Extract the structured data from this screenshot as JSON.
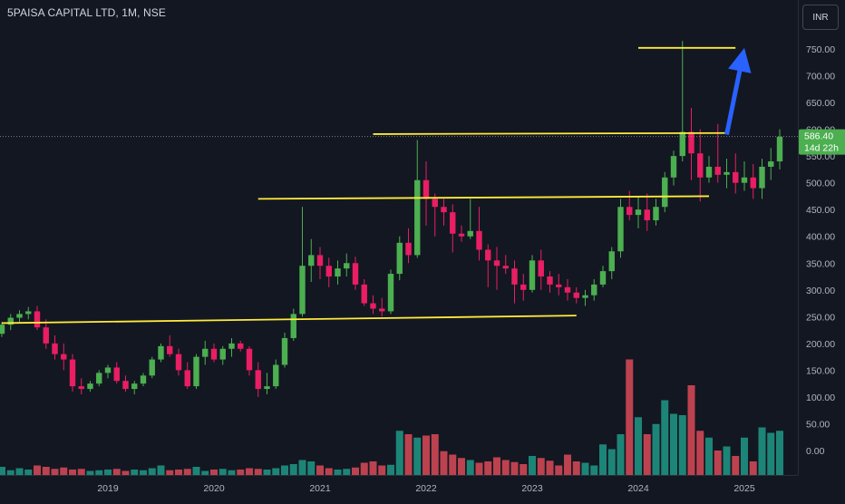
{
  "header": {
    "title": "5PAISA CAPITAL LTD, 1M, NSE"
  },
  "toolbar": {
    "currency_label": "INR"
  },
  "price_badge": {
    "price": "586.40",
    "countdown": "14d 22h",
    "color": "#4caf50"
  },
  "colors": {
    "up": "#4caf50",
    "down": "#e91e63",
    "vol_up": "#22ab94",
    "vol_down": "#f7525f",
    "trendline": "#ffeb3b",
    "arrow": "#2962ff"
  },
  "chart_data": {
    "type": "candlestick",
    "title": "5PAISA CAPITAL LTD, 1M, NSE",
    "y_ticks": [
      "750.00",
      "700.00",
      "650.00",
      "600.00",
      "550.00",
      "500.00",
      "450.00",
      "400.00",
      "350.00",
      "300.00",
      "250.00",
      "200.00",
      "150.00",
      "100.00",
      "50.00",
      "0.00"
    ],
    "x_ticks": [
      {
        "label": "2019",
        "x": "2019-01"
      },
      {
        "label": "2020",
        "x": "2020-01"
      },
      {
        "label": "2021",
        "x": "2021-01"
      },
      {
        "label": "2022",
        "x": "2022-01"
      },
      {
        "label": "2023",
        "x": "2023-01"
      },
      {
        "label": "2024",
        "x": "2024-01"
      },
      {
        "label": "2025",
        "x": "2025-01"
      }
    ],
    "ylim": [
      0,
      770
    ],
    "last_price": 586.4,
    "candles": [
      [
        218,
        240,
        212,
        235
      ],
      [
        235,
        255,
        225,
        248
      ],
      [
        248,
        262,
        240,
        255
      ],
      [
        255,
        268,
        245,
        260
      ],
      [
        260,
        270,
        225,
        230
      ],
      [
        230,
        245,
        190,
        200
      ],
      [
        200,
        215,
        170,
        180
      ],
      [
        180,
        200,
        150,
        170
      ],
      [
        170,
        180,
        110,
        120
      ],
      [
        120,
        135,
        105,
        115
      ],
      [
        115,
        130,
        110,
        125
      ],
      [
        125,
        150,
        120,
        145
      ],
      [
        145,
        160,
        135,
        155
      ],
      [
        155,
        165,
        125,
        130
      ],
      [
        130,
        140,
        110,
        115
      ],
      [
        115,
        130,
        105,
        125
      ],
      [
        125,
        145,
        120,
        140
      ],
      [
        140,
        175,
        135,
        170
      ],
      [
        170,
        200,
        165,
        195
      ],
      [
        195,
        215,
        175,
        180
      ],
      [
        180,
        190,
        140,
        150
      ],
      [
        150,
        165,
        115,
        120
      ],
      [
        120,
        180,
        115,
        175
      ],
      [
        175,
        205,
        160,
        190
      ],
      [
        190,
        200,
        165,
        170
      ],
      [
        170,
        195,
        160,
        190
      ],
      [
        190,
        210,
        175,
        200
      ],
      [
        200,
        205,
        185,
        190
      ],
      [
        190,
        195,
        140,
        150
      ],
      [
        150,
        165,
        100,
        115
      ],
      [
        115,
        145,
        105,
        120
      ],
      [
        120,
        170,
        115,
        160
      ],
      [
        160,
        220,
        155,
        210
      ],
      [
        210,
        265,
        205,
        255
      ],
      [
        255,
        455,
        250,
        345
      ],
      [
        345,
        395,
        315,
        365
      ],
      [
        365,
        380,
        320,
        345
      ],
      [
        345,
        360,
        305,
        325
      ],
      [
        325,
        355,
        310,
        340
      ],
      [
        340,
        368,
        325,
        350
      ],
      [
        350,
        362,
        300,
        310
      ],
      [
        310,
        320,
        270,
        275
      ],
      [
        275,
        290,
        255,
        265
      ],
      [
        265,
        285,
        250,
        260
      ],
      [
        260,
        338,
        255,
        330
      ],
      [
        330,
        400,
        318,
        388
      ],
      [
        388,
        415,
        350,
        365
      ],
      [
        365,
        580,
        360,
        505
      ],
      [
        505,
        540,
        420,
        470
      ],
      [
        470,
        480,
        400,
        455
      ],
      [
        455,
        470,
        420,
        445
      ],
      [
        445,
        460,
        370,
        405
      ],
      [
        405,
        420,
        390,
        400
      ],
      [
        400,
        470,
        395,
        410
      ],
      [
        410,
        455,
        355,
        375
      ],
      [
        375,
        385,
        305,
        355
      ],
      [
        355,
        380,
        300,
        345
      ],
      [
        345,
        365,
        330,
        340
      ],
      [
        340,
        355,
        275,
        310
      ],
      [
        310,
        330,
        280,
        300
      ],
      [
        300,
        365,
        295,
        355
      ],
      [
        355,
        375,
        300,
        325
      ],
      [
        325,
        335,
        295,
        310
      ],
      [
        310,
        330,
        290,
        305
      ],
      [
        305,
        320,
        280,
        295
      ],
      [
        295,
        305,
        275,
        285
      ],
      [
        285,
        300,
        270,
        290
      ],
      [
        290,
        320,
        280,
        310
      ],
      [
        310,
        345,
        305,
        335
      ],
      [
        335,
        380,
        320,
        372
      ],
      [
        372,
        470,
        360,
        455
      ],
      [
        455,
        485,
        430,
        440
      ],
      [
        440,
        475,
        415,
        450
      ],
      [
        450,
        480,
        410,
        430
      ],
      [
        430,
        470,
        420,
        455
      ],
      [
        455,
        520,
        445,
        510
      ],
      [
        510,
        560,
        495,
        550
      ],
      [
        550,
        765,
        540,
        595
      ],
      [
        595,
        640,
        505,
        555
      ],
      [
        555,
        600,
        465,
        510
      ],
      [
        510,
        550,
        500,
        530
      ],
      [
        530,
        610,
        500,
        515
      ],
      [
        515,
        545,
        490,
        520
      ],
      [
        520,
        555,
        480,
        500
      ],
      [
        500,
        540,
        485,
        510
      ],
      [
        510,
        535,
        470,
        490
      ],
      [
        490,
        545,
        470,
        530
      ],
      [
        530,
        565,
        505,
        540
      ],
      [
        540,
        600,
        525,
        586
      ]
    ],
    "volumes": [
      12,
      7,
      10,
      8,
      14,
      12,
      9,
      11,
      8,
      9,
      6,
      7,
      8,
      9,
      6,
      8,
      7,
      10,
      14,
      7,
      8,
      9,
      12,
      6,
      8,
      9,
      7,
      8,
      10,
      9,
      8,
      10,
      14,
      16,
      22,
      20,
      14,
      10,
      8,
      9,
      11,
      18,
      20,
      14,
      15,
      65,
      60,
      55,
      58,
      60,
      35,
      30,
      25,
      22,
      18,
      20,
      26,
      22,
      19,
      16,
      28,
      25,
      21,
      14,
      30,
      20,
      18,
      14,
      45,
      38,
      60,
      170,
      85,
      60,
      75,
      110,
      90,
      88,
      132,
      65,
      55,
      36,
      42,
      28,
      55,
      20,
      70,
      62,
      65
    ],
    "trendlines": [
      {
        "from": [
          "2018-01",
          238
        ],
        "to": [
          "2023-06",
          252
        ]
      },
      {
        "from": [
          "2020-06",
          470
        ],
        "to": [
          "2024-09",
          475
        ]
      },
      {
        "from": [
          "2021-07",
          591
        ],
        "to": [
          "2024-11",
          593
        ]
      },
      {
        "from": [
          "2024-01",
          752
        ],
        "to": [
          "2024-12",
          752
        ]
      }
    ],
    "arrow": {
      "from": [
        "2024-11",
        590
      ],
      "to": [
        "2025-01",
        752
      ]
    }
  }
}
